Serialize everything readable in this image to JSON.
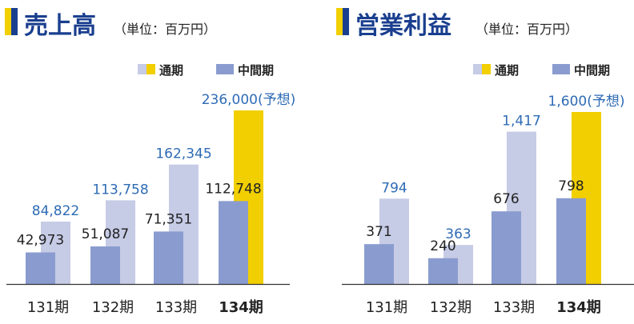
{
  "colors": {
    "accent_blue": "#1a3f8f",
    "accent_yellow": "#f2cf00",
    "full_year": "#c6cbe6",
    "interim": "#8a9ccf",
    "forecast": "#f2cf00",
    "value_blue": "#2e6bb5",
    "value_dark": "#222222",
    "axis": "#333333"
  },
  "chart_data": [
    {
      "type": "bar",
      "title": "売上高",
      "subtitle": "（単位：百万円）",
      "categories": [
        "131期",
        "132期",
        "133期",
        "134期"
      ],
      "highlight_category": "134期",
      "legend": [
        "通期",
        "中間期"
      ],
      "legend_placement": "top-right",
      "grid": false,
      "ylim": [
        0,
        240000
      ],
      "series": [
        {
          "name": "中間期",
          "values": [
            42973,
            51087,
            71351,
            112748
          ],
          "labels": [
            "42,973",
            "51,087",
            "71,351",
            "112,748"
          ]
        },
        {
          "name": "通期",
          "values": [
            84822,
            113758,
            162345,
            236000
          ],
          "labels": [
            "84,822",
            "113,758",
            "162,345",
            "236,000(予想)"
          ]
        }
      ]
    },
    {
      "type": "bar",
      "title": "営業利益",
      "subtitle": "（単位：百万円）",
      "categories": [
        "131期",
        "132期",
        "133期",
        "134期"
      ],
      "highlight_category": "134期",
      "legend": [
        "通期",
        "中間期"
      ],
      "legend_placement": "top-right",
      "grid": false,
      "ylim": [
        0,
        1630
      ],
      "series": [
        {
          "name": "中間期",
          "values": [
            371,
            240,
            676,
            798
          ],
          "labels": [
            "371",
            "240",
            "676",
            "798"
          ]
        },
        {
          "name": "通期",
          "values": [
            794,
            363,
            1417,
            1600
          ],
          "labels": [
            "794",
            "363",
            "1,417",
            "1,600(予想)"
          ]
        }
      ]
    }
  ]
}
